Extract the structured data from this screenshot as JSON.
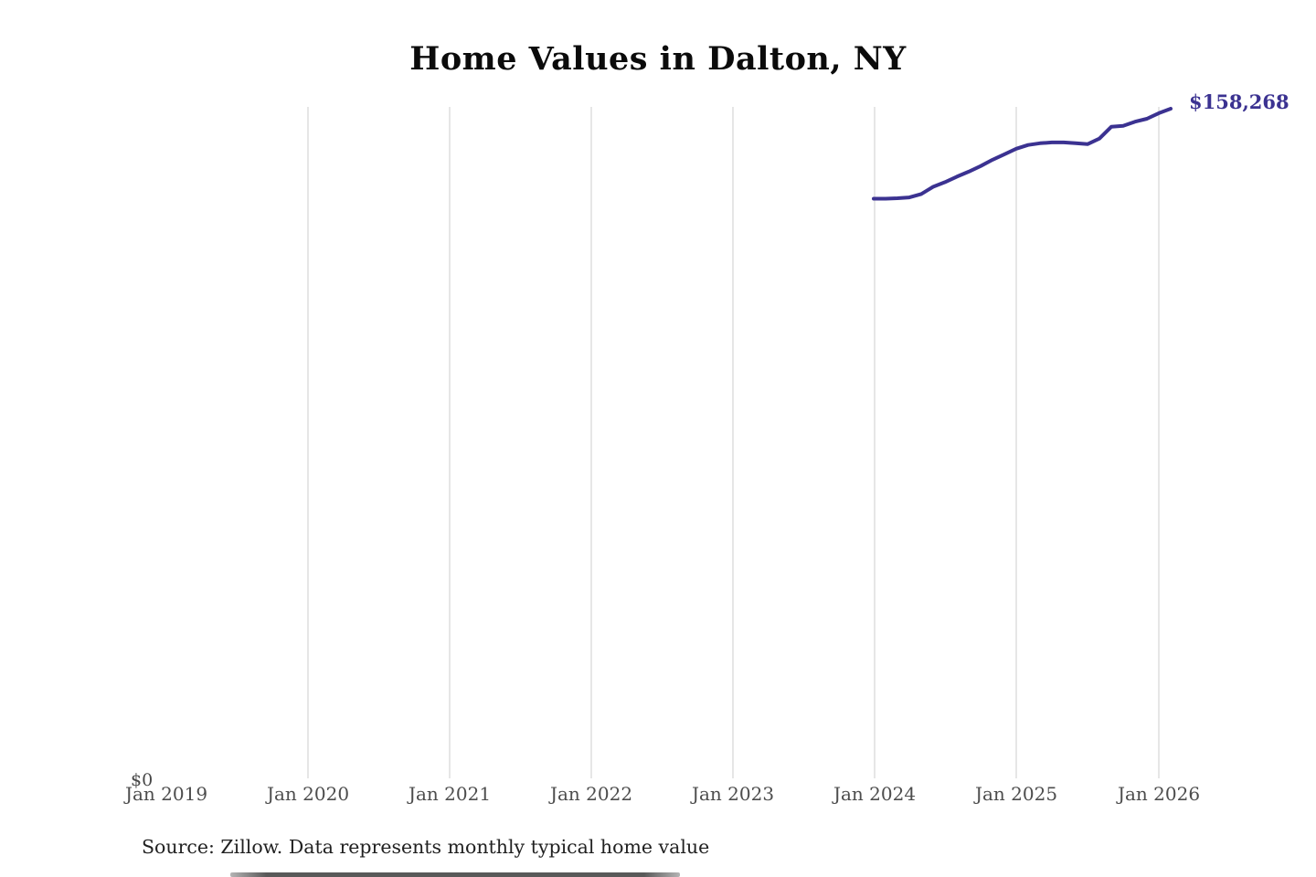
{
  "title": "Home Values in Dalton, NY",
  "end_label": "$158,268",
  "y_zero_label": "$0",
  "caption": {
    "source": "Source: Zillow. Data represents monthly typical home value"
  },
  "colors": {
    "line": "#3b3291",
    "end_label": "#3b3291",
    "gridline": "#cccccc",
    "title": "#0b0b0b",
    "tick_label": "#4d4d4d",
    "caption": "#212121"
  },
  "chart_data": {
    "type": "line",
    "title": "Home Values in Dalton, NY",
    "xlabel": "",
    "ylabel": "",
    "ylim": [
      0,
      165000
    ],
    "grid": "vertical-only",
    "legend": "none",
    "x_ticks": [
      "Jan 2019",
      "Jan 2020",
      "Jan 2021",
      "Jan 2022",
      "Jan 2023",
      "Jan 2024",
      "Jan 2025",
      "Jan 2026"
    ],
    "x": [
      "Jan 2024",
      "Feb 2024",
      "Mar 2024",
      "Apr 2024",
      "May 2024",
      "Jun 2024",
      "Jul 2024",
      "Aug 2024",
      "Sep 2024",
      "Oct 2024",
      "Nov 2024",
      "Dec 2024",
      "Jan 2025",
      "Feb 2025",
      "Mar 2025",
      "Apr 2025",
      "May 2025",
      "Jun 2025",
      "Jul 2025",
      "Aug 2025",
      "Sep 2025",
      "Oct 2025",
      "Nov 2025",
      "Dec 2025",
      "Jan 2026",
      "Feb 2026"
    ],
    "values": [
      137000,
      137000,
      137100,
      137300,
      138100,
      139800,
      140900,
      142200,
      143400,
      144700,
      146200,
      147500,
      148800,
      149700,
      150100,
      150300,
      150300,
      150100,
      149900,
      151200,
      154000,
      154200,
      155200,
      155900,
      157200,
      158268
    ],
    "series_name": "Typical home value",
    "end_value": 158268,
    "annotations": [
      {
        "text": "$158,268",
        "position": "line-end"
      }
    ]
  }
}
